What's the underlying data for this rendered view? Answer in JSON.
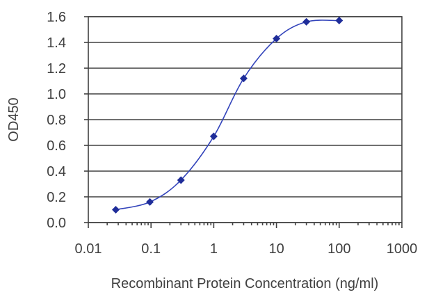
{
  "chart_data": {
    "type": "scatter",
    "title": "",
    "xlabel": "Recombinant Protein Concentration (ng/ml)",
    "ylabel": "OD450",
    "x_scale": "log",
    "xlim": [
      0.01,
      1000
    ],
    "ylim": [
      0.0,
      1.6
    ],
    "x_ticks": [
      "0.01",
      "0.1",
      "1",
      "10",
      "100",
      "1000"
    ],
    "y_ticks": [
      "0.0",
      "0.2",
      "0.4",
      "0.6",
      "0.8",
      "1.0",
      "1.2",
      "1.4",
      "1.6"
    ],
    "grid": "horizontal",
    "legend": "none",
    "series": [
      {
        "x": [
          0.0274,
          0.0959,
          0.3,
          1.0,
          3.0,
          10.0,
          30.0,
          100.0
        ],
        "y": [
          0.1,
          0.16,
          0.33,
          0.67,
          1.12,
          1.43,
          1.56,
          1.57
        ],
        "color": "#1f2d99",
        "fit_line": true
      }
    ]
  }
}
